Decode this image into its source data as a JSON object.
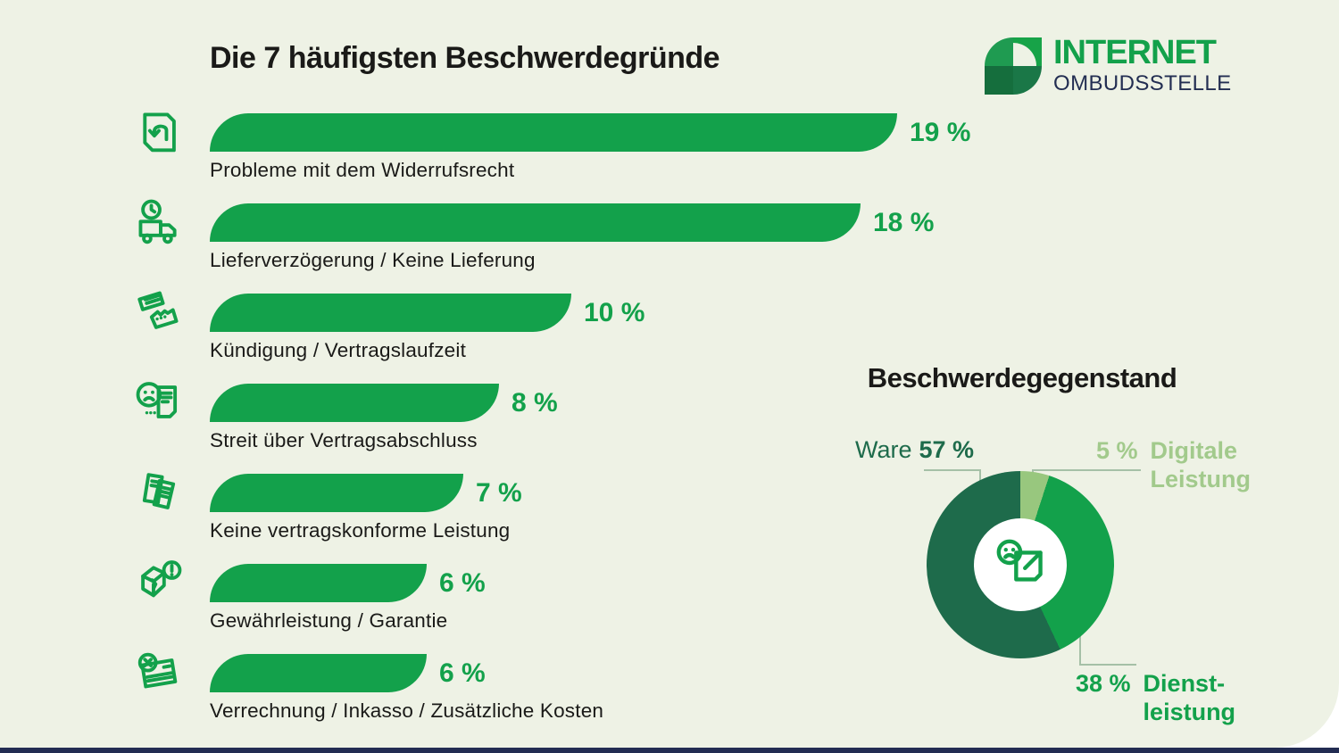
{
  "theme": {
    "background": "#eef2e5",
    "green": "#13a14b",
    "dark_green": "#1e6b4b",
    "light_green_slice": "#98c77e",
    "light_green_text": "#a2ca8c",
    "navy": "#232e52",
    "text_color": "#1a1a18",
    "leader_line": "#a5c0a7",
    "footer_bar": "#222c52"
  },
  "logo": {
    "title": "INTERNET",
    "subtitle": "OMBUDSSTELLE",
    "icon": "internet-ombudsstelle-logo-icon",
    "icon_colors": {
      "top_left": "#1f9b51",
      "top_right": "#17a348",
      "bottom_left": "#156e3d",
      "bottom_right": "#1a7747"
    }
  },
  "chart_data": [
    {
      "type": "bar",
      "orientation": "horizontal",
      "title": "Die 7 häufigsten Beschwerdegründe",
      "categories": [
        "Probleme mit dem Widerrufsrecht",
        "Lieferverzögerung / Keine Lieferung",
        "Kündigung / Vertragslaufzeit",
        "Streit über Vertragsabschluss",
        "Keine vertragskonforme Leistung",
        "Gewährleistung / Garantie",
        "Verrechnung / Inkasso / Zusätzliche Kosten"
      ],
      "values": [
        19,
        18,
        10,
        8,
        7,
        6,
        6
      ],
      "value_labels": [
        "19 %",
        "18 %",
        "10 %",
        "8 %",
        "7 %",
        "6 %",
        "6 %"
      ],
      "unit": "%",
      "xlim": [
        0,
        19.7
      ],
      "bar_color": "#13a14b",
      "grid": false,
      "icons": [
        "return-box-icon",
        "delivery-truck-clock-icon",
        "torn-contract-icon",
        "sad-face-document-icon",
        "documents-icon",
        "damaged-box-alert-icon",
        "card-cancel-icon"
      ]
    },
    {
      "type": "pie",
      "donut": true,
      "title": "Beschwerdegegenstand",
      "start_at_top": true,
      "clockwise": true,
      "draw_order_from_top": [
        1,
        2,
        0
      ],
      "center_icon": "sad-face-package-icon",
      "slices": [
        {
          "label": "Ware",
          "value": 57,
          "display": "57 %",
          "color": "#1e6b4b"
        },
        {
          "label": "Digitale Leistung",
          "value": 5,
          "display": "5 %",
          "color": "#98c77e",
          "label_lines": [
            "Digitale",
            "Leistung"
          ]
        },
        {
          "label": "Dienstleistung",
          "value": 38,
          "display": "38 %",
          "color": "#13a14b",
          "label_lines": [
            "Dienst-",
            "leistung"
          ]
        }
      ]
    }
  ]
}
